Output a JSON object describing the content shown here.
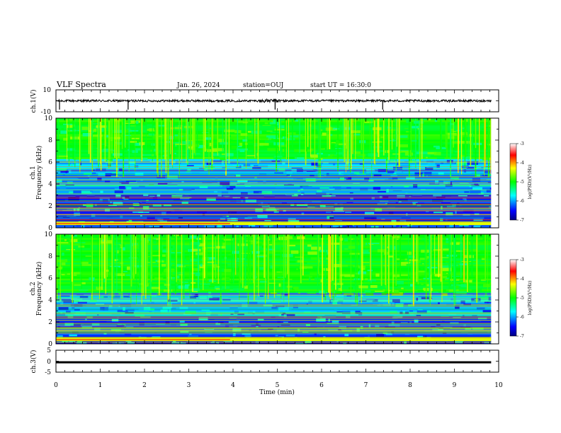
{
  "header": {
    "title": "VLF Spectra",
    "date": "Jan. 26, 2024",
    "station": "station=OUJ",
    "start": "start UT =  16:30:0"
  },
  "chart_data": [
    {
      "type": "line",
      "name": "ch1-waveform",
      "ylabel": "ch.1(V)",
      "ylim": [
        -10,
        10
      ],
      "tick_labels": [
        "10",
        "-10"
      ],
      "xlim": [
        0,
        10
      ],
      "baseline_level": 0,
      "amplitude_range": [
        -1,
        1
      ],
      "spike_times": [
        0.08,
        1.63,
        4.95,
        7.38
      ]
    },
    {
      "type": "heatmap",
      "name": "ch1-spectrogram",
      "ylabel": "ch.1\nFrequency (kHz)",
      "ylabel_lines": [
        "ch.1",
        "Frequency (kHz)"
      ],
      "xlim": [
        0,
        10
      ],
      "data_end_time": 9.83,
      "ylim": [
        0,
        10
      ],
      "y_tick_labels": [
        "0",
        "2",
        "4",
        "6",
        "8",
        "10"
      ],
      "colorbar": {
        "label": "log(PSD)(V²/Hz)",
        "range": [
          -7,
          -3
        ],
        "tick_labels": [
          "-3",
          "-4",
          "-5",
          "-6",
          "-7"
        ]
      }
    },
    {
      "type": "heatmap",
      "name": "ch2-spectrogram",
      "ylabel": "ch.2\nFrequency (kHz)",
      "ylabel_lines": [
        "ch.2",
        "Frequency (kHz)"
      ],
      "xlim": [
        0,
        10
      ],
      "data_end_time": 9.83,
      "ylim": [
        0,
        10
      ],
      "y_tick_labels": [
        "0",
        "2",
        "4",
        "6",
        "8",
        "10"
      ],
      "colorbar": {
        "label": "log(PSD)(V²/Hz)",
        "range": [
          -7,
          -3
        ],
        "tick_labels": [
          "-3",
          "-4",
          "-5",
          "-6",
          "-7"
        ]
      }
    },
    {
      "type": "line",
      "name": "ch3-waveform",
      "ylabel": "ch.3(V)",
      "ylim": [
        -5,
        5
      ],
      "tick_labels": [
        "5",
        "0",
        "-5"
      ],
      "xlim": [
        0,
        10
      ],
      "baseline_level": -0.5
    }
  ],
  "xaxis": {
    "label": "Time (min)",
    "tick_labels": [
      "0",
      "1",
      "2",
      "3",
      "4",
      "5",
      "6",
      "7",
      "8",
      "9",
      "10"
    ]
  },
  "colors": {
    "axis": "#000000",
    "background": "#ffffff"
  }
}
